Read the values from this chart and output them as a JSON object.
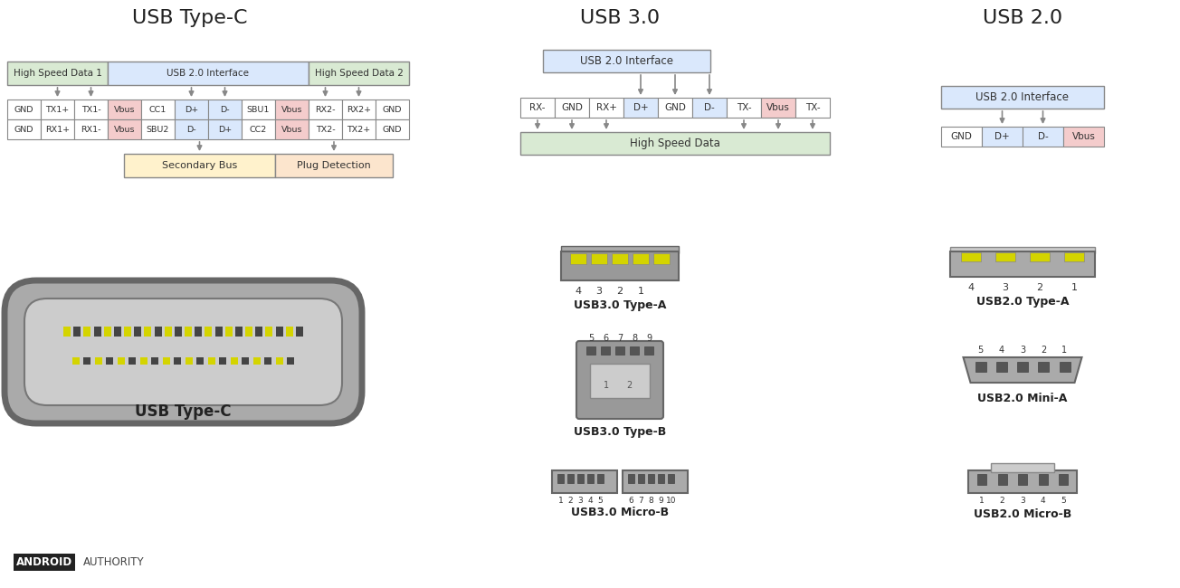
{
  "title_typec": "USB Type-C",
  "title_usb30": "USB 3.0",
  "title_usb20": "USB 2.0",
  "bg_color": "#ffffff",
  "green_bg": "#d9ead3",
  "blue_bg": "#dae8fc",
  "red_bg": "#f4cccc",
  "yellow_bg": "#fff2cc",
  "pink_bg": "#fce5cd",
  "gray_conn": "#999999",
  "gray_dark": "#666666",
  "yellow_pin": "#d4d400",
  "dark_pin": "#444444",
  "typec_row1": [
    "GND",
    "TX1+",
    "TX1-",
    "Vbus",
    "CC1",
    "D+",
    "D-",
    "SBU1",
    "Vbus",
    "RX2-",
    "RX2+",
    "GND"
  ],
  "typec_row2": [
    "GND",
    "RX1+",
    "RX1-",
    "Vbus",
    "SBU2",
    "D-",
    "D+",
    "CC2",
    "Vbus",
    "TX2-",
    "TX2+",
    "GND"
  ],
  "typec_row1_colors": [
    "w",
    "w",
    "w",
    "r",
    "w",
    "b",
    "b",
    "w",
    "r",
    "w",
    "w",
    "w"
  ],
  "typec_row2_colors": [
    "w",
    "w",
    "w",
    "r",
    "w",
    "b",
    "b",
    "w",
    "r",
    "w",
    "w",
    "w"
  ],
  "usb30_pins": [
    "RX-",
    "GND",
    "RX+",
    "D+",
    "GND",
    "D-",
    "TX-",
    "Vbus",
    "TX-"
  ],
  "usb30_pin_colors": [
    "w",
    "w",
    "w",
    "b",
    "w",
    "b",
    "w",
    "r",
    "w"
  ],
  "usb20_pins": [
    "GND",
    "D+",
    "D-",
    "Vbus"
  ],
  "usb20_pin_colors": [
    "w",
    "b",
    "b",
    "r"
  ]
}
